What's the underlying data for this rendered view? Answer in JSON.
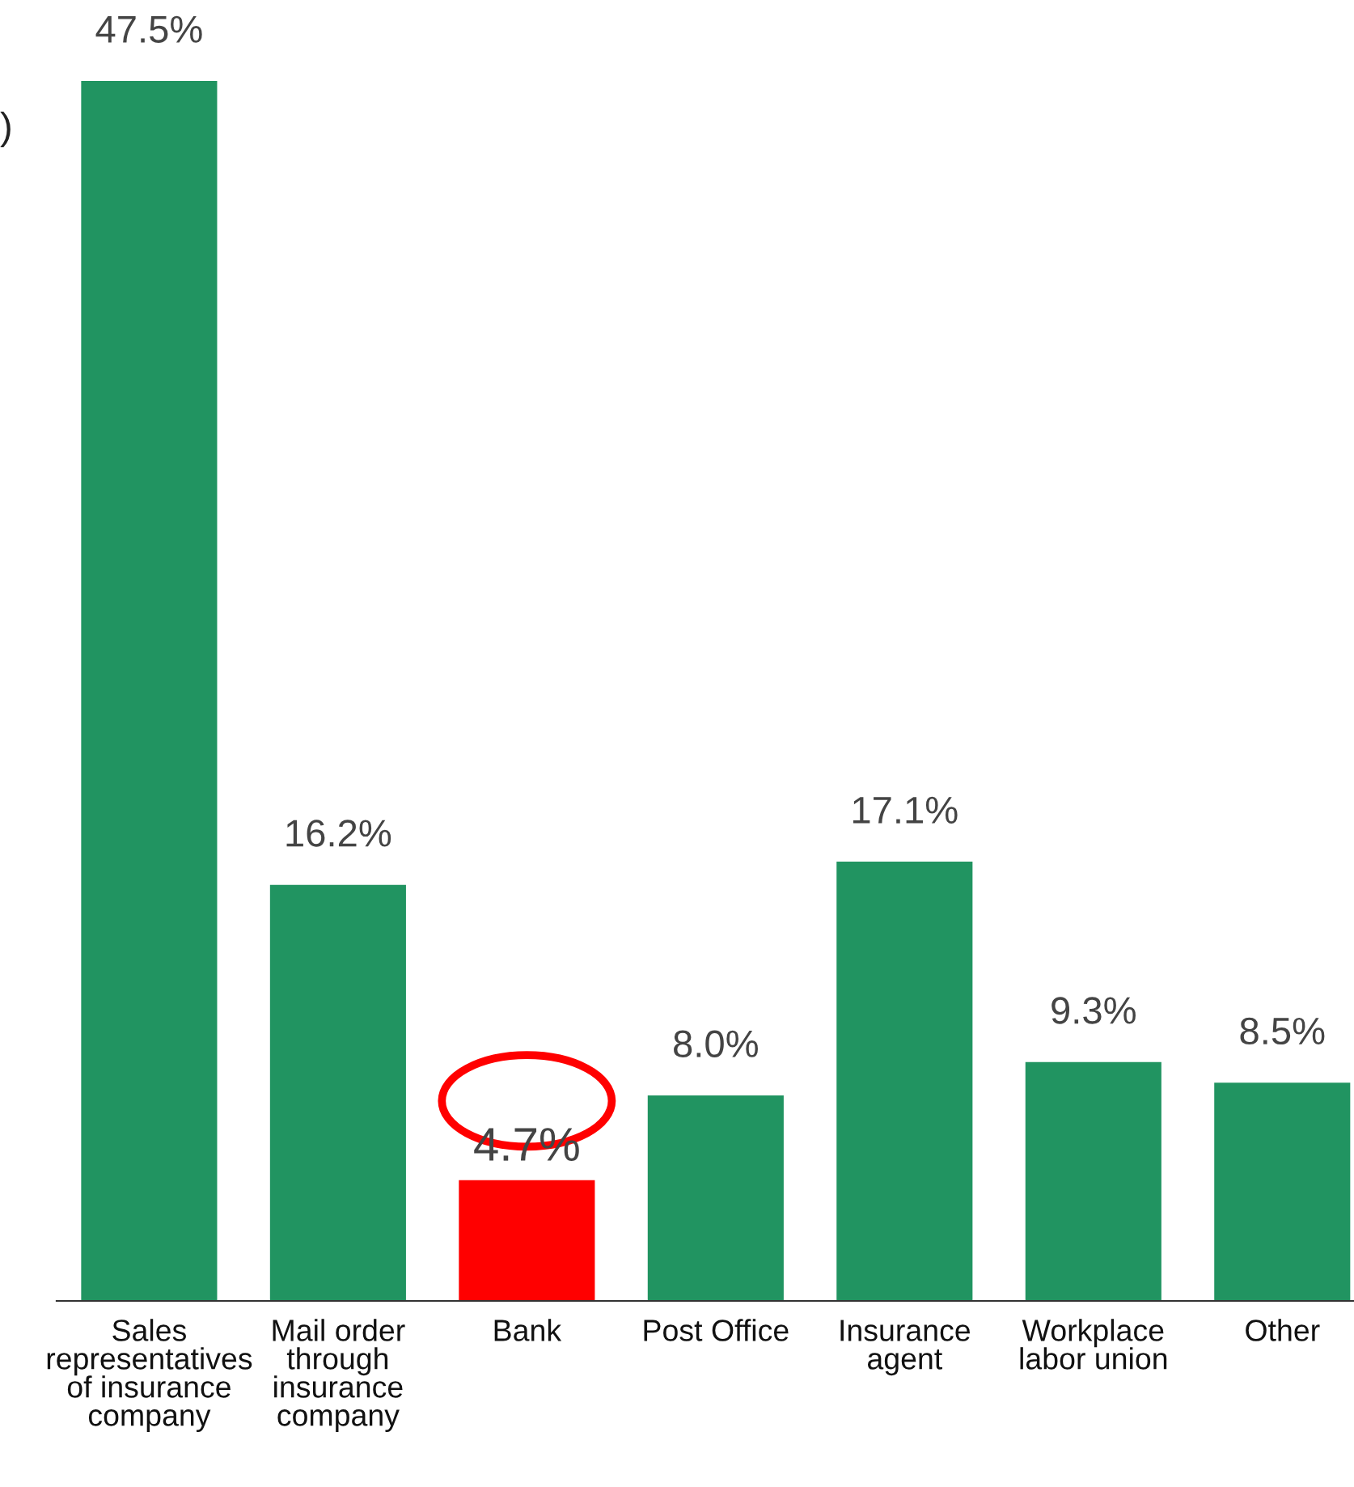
{
  "chart_data": {
    "type": "bar",
    "categories": [
      "Sales\nrepresentatives\nof insurance\ncompany",
      "Mail order\nthrough\ninsurance\ncompany",
      "Bank",
      "Post Office",
      "Insurance\nagent",
      "Workplace\nlabor union",
      "Other"
    ],
    "values": [
      47.5,
      16.2,
      4.7,
      8.0,
      17.1,
      9.3,
      8.5
    ],
    "value_labels": [
      "47.5%",
      "16.2%",
      "4.7%",
      "8.0%",
      "17.1%",
      "9.3%",
      "8.5%"
    ],
    "colors": [
      "#219461",
      "#219461",
      "#ff0000",
      "#219461",
      "#219461",
      "#219461",
      "#219461"
    ],
    "grid": false,
    "legend": false,
    "annotations": [
      ")"
    ]
  }
}
